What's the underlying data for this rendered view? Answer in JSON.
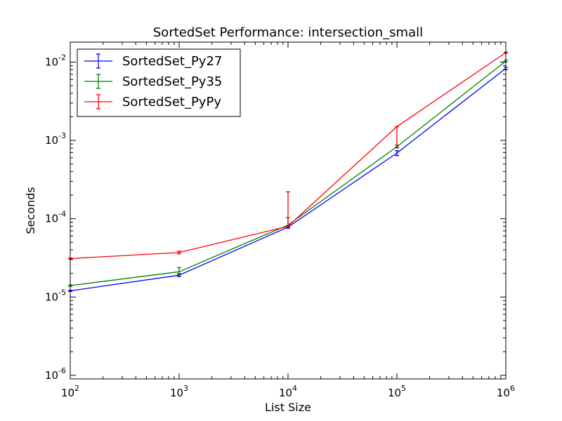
{
  "chart_data": {
    "type": "line",
    "title": "SortedSet Performance: intersection_small",
    "xlabel": "List Size",
    "ylabel": "Seconds",
    "x_scale": "log",
    "y_scale": "log",
    "xlim": [
      100,
      1000000
    ],
    "ylim": [
      9e-07,
      0.018
    ],
    "x_ticks": [
      {
        "value": 100,
        "base": "10",
        "exp": "2"
      },
      {
        "value": 1000,
        "base": "10",
        "exp": "3"
      },
      {
        "value": 10000,
        "base": "10",
        "exp": "4"
      },
      {
        "value": 100000,
        "base": "10",
        "exp": "5"
      },
      {
        "value": 1000000,
        "base": "10",
        "exp": "6"
      }
    ],
    "y_ticks": [
      {
        "value": 1e-06,
        "base": "10",
        "exp": "-6"
      },
      {
        "value": 1e-05,
        "base": "10",
        "exp": "-5"
      },
      {
        "value": 0.0001,
        "base": "10",
        "exp": "-4"
      },
      {
        "value": 0.001,
        "base": "10",
        "exp": "-3"
      },
      {
        "value": 0.01,
        "base": "10",
        "exp": "-2"
      }
    ],
    "x": [
      100,
      1000,
      10000,
      100000,
      1000000
    ],
    "grid": false,
    "legend_position": "top-left",
    "series": [
      {
        "name": "SortedSet_Py27",
        "color": "#0000ff",
        "values": [
          1.2e-05,
          1.9e-05,
          7.8e-05,
          0.00069,
          0.0083
        ],
        "err_low": [
          1.18e-05,
          1.82e-05,
          7.55e-05,
          0.00064,
          0.008
        ],
        "err_high": [
          1.22e-05,
          1.98e-05,
          8.05e-05,
          0.00074,
          0.0086
        ]
      },
      {
        "name": "SortedSet_Py35",
        "color": "#008000",
        "values": [
          1.4e-05,
          2.1e-05,
          8.3e-05,
          0.00083,
          0.0103
        ],
        "err_low": [
          1.37e-05,
          1.92e-05,
          7.9e-05,
          0.0008,
          0.0101
        ],
        "err_high": [
          1.43e-05,
          2.38e-05,
          0.000103,
          0.00087,
          0.0106
        ]
      },
      {
        "name": "SortedSet_PyPy",
        "color": "#ff0000",
        "values": [
          3.1e-05,
          3.7e-05,
          8e-05,
          0.0015,
          0.0132
        ],
        "err_low": [
          3.05e-05,
          3.55e-05,
          7.8e-05,
          0.00082,
          0.013
        ],
        "err_high": [
          3.15e-05,
          3.85e-05,
          0.00022,
          0.0015,
          0.0134
        ]
      }
    ]
  }
}
